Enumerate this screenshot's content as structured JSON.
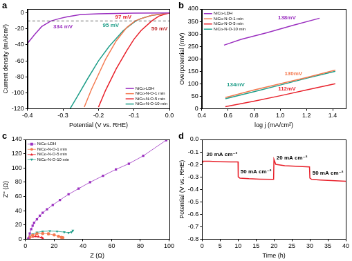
{
  "chart_data": [
    {
      "panel": "a",
      "type": "line",
      "x_label": "Potential (V vs. RHE)",
      "y_label": "Current density (mA/cm²)",
      "xlim": [
        -0.4,
        0.0
      ],
      "xticks": [
        -0.4,
        -0.3,
        -0.2,
        -0.1,
        {
          "value": 0,
          "label": "0.0"
        }
      ],
      "ylim": [
        -120,
        5
      ],
      "yticks": [
        -120,
        -100,
        -80,
        -60,
        -40,
        -20,
        0
      ],
      "grid": false,
      "legend": "bottom right",
      "reference_line": {
        "y": -10,
        "line_style": "dashed"
      },
      "series": [
        {
          "name": "NiCo-LDH",
          "color": "#9b30c0",
          "marker": "none",
          "line_style": "solid",
          "x": [
            0,
            -0.1,
            -0.2,
            -0.25,
            -0.29,
            -0.31,
            -0.334,
            -0.36,
            -0.38,
            -0.4
          ],
          "values": [
            0,
            -0.3,
            -1,
            -2,
            -5,
            -7,
            -10,
            -17,
            -27,
            -38
          ]
        },
        {
          "name": "NiCo-N-O-1 min",
          "color": "#f47a50",
          "marker": "none",
          "line_style": "solid",
          "x": [
            0,
            -0.05,
            -0.08,
            -0.097,
            -0.12,
            -0.15,
            -0.18,
            -0.2,
            -0.22,
            -0.24
          ],
          "values": [
            0,
            -3,
            -7,
            -10,
            -18,
            -35,
            -58,
            -77,
            -96,
            -118
          ]
        },
        {
          "name": "NiCo-N-O-5 min",
          "color": "#e8202a",
          "marker": "none",
          "line_style": "solid",
          "x": [
            0,
            -0.03,
            -0.05,
            -0.08,
            -0.1,
            -0.12,
            -0.15,
            -0.18,
            -0.2
          ],
          "values": [
            0,
            -4,
            -10,
            -22,
            -33,
            -47,
            -70,
            -97,
            -118
          ]
        },
        {
          "name": "NiCo-N-O-10 min",
          "color": "#1f9e89",
          "marker": "none",
          "line_style": "solid",
          "x": [
            0,
            -0.05,
            -0.08,
            -0.095,
            -0.13,
            -0.17,
            -0.2,
            -0.23,
            -0.26,
            -0.28
          ],
          "values": [
            0,
            -3,
            -7,
            -10,
            -22,
            -42,
            -60,
            -82,
            -105,
            -120
          ]
        }
      ],
      "annotations": [
        {
          "text": "334 mV",
          "x": -0.3,
          "y": -17,
          "color": "#9b30c0"
        },
        {
          "text": "95 mV",
          "x": -0.165,
          "y": -16,
          "color": "#1f9e89"
        },
        {
          "text": "97 mV",
          "x": -0.13,
          "y": -5.5,
          "color": "#e8202a"
        },
        {
          "text": "50 mV",
          "x": -0.028,
          "y": -20,
          "color": "#c0282a"
        }
      ]
    },
    {
      "panel": "b",
      "type": "line",
      "x_label": "log j (mA/cm²)",
      "y_label": "Overpotential (mV)",
      "xlim": [
        0.4,
        1.5
      ],
      "xticks": [
        0.4,
        0.6,
        0.8,
        {
          "value": 1,
          "label": "1.0"
        },
        1.2,
        1.4
      ],
      "ylim": [
        0,
        400
      ],
      "yticks": [
        0,
        50,
        100,
        150,
        200,
        250,
        300,
        350,
        400
      ],
      "grid": false,
      "legend": "top left",
      "series": [
        {
          "name": "NiCo-LDH",
          "color": "#9b30c0",
          "marker": "none",
          "line_style": "solid",
          "x": [
            0.57,
            0.7,
            0.9,
            1.1,
            1.3
          ],
          "values": [
            255,
            278,
            305,
            335,
            363
          ]
        },
        {
          "name": "NiCo-N-O-1 min",
          "color": "#f47a50",
          "marker": "none",
          "line_style": "solid",
          "x": [
            0.58,
            0.8,
            1.0,
            1.2,
            1.42
          ],
          "values": [
            45,
            75,
            100,
            125,
            155
          ]
        },
        {
          "name": "NiCo-N-O-5 min",
          "color": "#e8202a",
          "marker": "none",
          "line_style": "solid",
          "x": [
            0.58,
            0.8,
            1.0,
            1.2,
            1.42
          ],
          "values": [
            8,
            30,
            52,
            75,
            100
          ]
        },
        {
          "name": "NiCo-N-O-10 min",
          "color": "#1f9e89",
          "marker": "none",
          "line_style": "solid",
          "x": [
            0.58,
            0.8,
            1.0,
            1.2,
            1.42
          ],
          "values": [
            40,
            68,
            95,
            122,
            150
          ]
        }
      ],
      "annotations": [
        {
          "text": "138mV",
          "x": 1.05,
          "y": 365,
          "color": "#9b30c0"
        },
        {
          "text": "130mV",
          "x": 1.1,
          "y": 140,
          "color": "#f47a50"
        },
        {
          "text": "134mV",
          "x": 0.66,
          "y": 96,
          "color": "#1f9e89"
        },
        {
          "text": "112mV",
          "x": 1.05,
          "y": 80,
          "color": "#e8202a"
        }
      ]
    },
    {
      "panel": "c",
      "type": "line",
      "x_label": "Z (Ω)",
      "y_label": "Z'' (Ω)",
      "xlim": [
        0,
        100
      ],
      "xticks": [
        0,
        20,
        40,
        60,
        80,
        100
      ],
      "ylim": [
        0,
        140
      ],
      "yticks": [
        0,
        20,
        40,
        60,
        80,
        100,
        120,
        140
      ],
      "grid": false,
      "legend": "top left",
      "series": [
        {
          "name": "NiCo-LDH",
          "color": "#9b30c0",
          "marker": "square",
          "line_style": "solid",
          "x": [
            2,
            3,
            4,
            5,
            6,
            8,
            10,
            12,
            15,
            19,
            24,
            30,
            37,
            45,
            54,
            63,
            72,
            82,
            98
          ],
          "values": [
            1,
            8,
            14,
            19,
            23,
            28,
            33,
            37,
            42,
            48,
            55,
            63,
            71,
            80,
            89,
            98,
            106,
            117,
            139
          ]
        },
        {
          "name": "NiCo-N-O-1 min",
          "color": "#f47a50",
          "marker": "circle",
          "line_style": "solid",
          "x": [
            2,
            3,
            5,
            8,
            12,
            16,
            20,
            23,
            25,
            26
          ],
          "values": [
            0,
            3,
            5.5,
            7.5,
            8,
            7.5,
            6,
            4,
            2.5,
            2
          ]
        },
        {
          "name": "NiCo-N-O-5 min",
          "color": "#e8202a",
          "marker": "triangle",
          "line_style": "solid",
          "x": [
            2,
            3,
            5,
            7,
            9,
            11,
            12
          ],
          "values": [
            0,
            2,
            3.5,
            4,
            3.5,
            2.5,
            1.5
          ]
        },
        {
          "name": "NiCo-N-O-10 min",
          "color": "#1f9e89",
          "marker": "triangle-down",
          "line_style": "solid",
          "x": [
            2,
            3,
            5,
            8,
            12,
            17,
            22,
            27,
            30,
            32,
            33
          ],
          "values": [
            0,
            4,
            7,
            9.5,
            11,
            11.5,
            11,
            10,
            9,
            10,
            12
          ]
        }
      ]
    },
    {
      "panel": "d",
      "type": "line",
      "x_label": "Time (h)",
      "y_label": "Potential (V vs. RHE)",
      "xlim": [
        0,
        40
      ],
      "xticks": [
        0,
        5,
        10,
        15,
        20,
        25,
        30,
        35,
        40
      ],
      "ylim": [
        -0.8,
        0
      ],
      "yticks": [
        -0.8,
        -0.7,
        -0.6,
        -0.5,
        -0.4,
        -0.3,
        -0.2,
        -0.1,
        {
          "value": 0,
          "label": "0.0"
        }
      ],
      "grid": false,
      "series": [
        {
          "color": "#e8202a",
          "marker": "none",
          "line_style": "solid",
          "x": [
            0,
            0.3,
            2,
            5,
            8,
            10,
            10.05,
            10.5,
            13,
            16,
            19.9,
            20,
            20.5,
            23,
            26,
            29.9,
            30,
            30.5,
            33,
            36,
            40
          ],
          "values": [
            -0.19,
            -0.175,
            -0.175,
            -0.178,
            -0.18,
            -0.18,
            -0.3,
            -0.31,
            -0.315,
            -0.318,
            -0.32,
            -0.16,
            -0.2,
            -0.21,
            -0.215,
            -0.22,
            -0.31,
            -0.32,
            -0.325,
            -0.33,
            -0.335
          ]
        }
      ],
      "annotations": [
        {
          "text": "20 mA cm⁻²",
          "x": 5.5,
          "y": -0.12,
          "color": "#000000"
        },
        {
          "text": "50 mA cm⁻²",
          "x": 15,
          "y": -0.26,
          "color": "#000000"
        },
        {
          "text": "20 mA cm⁻²",
          "x": 25,
          "y": -0.15,
          "color": "#000000"
        },
        {
          "text": "50 mA cm⁻²",
          "x": 35,
          "y": -0.27,
          "color": "#000000"
        }
      ]
    }
  ]
}
